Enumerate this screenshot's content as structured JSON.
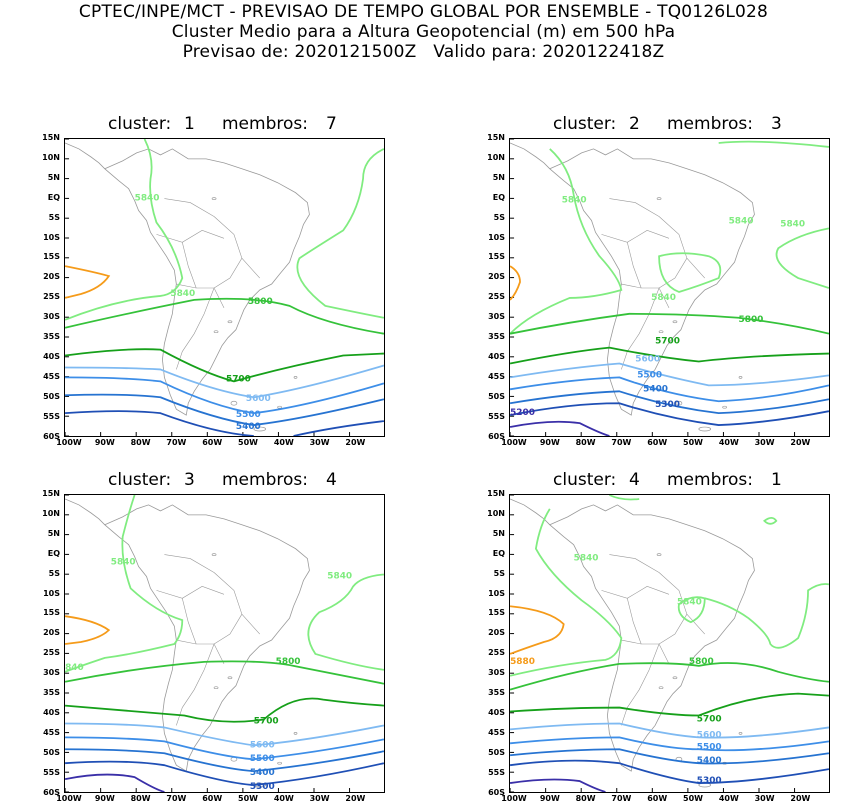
{
  "header": {
    "line1": "CPTEC/INPE/MCT - PREVISAO DE TEMPO GLOBAL POR ENSEMBLE - TQ0126L028",
    "line2": "Cluster Medio para a Altura Geopotencial (m) em 500 hPa",
    "line3": "Previsao de: 2020121500Z   Valido para: 2020122418Z"
  },
  "axes": {
    "lat_labels": [
      "15N",
      "10N",
      "5N",
      "EQ",
      "5S",
      "10S",
      "15S",
      "20S",
      "25S",
      "30S",
      "35S",
      "40S",
      "45S",
      "50S",
      "55S",
      "60S"
    ],
    "lon_labels": [
      "100W",
      "90W",
      "80W",
      "70W",
      "60W",
      "50W",
      "40W",
      "30W",
      "20W"
    ]
  },
  "colors": {
    "c5200": "#3a2fa8",
    "c5300": "#1f4fb5",
    "c5400": "#2673d1",
    "c5500": "#3d8ee8",
    "c5600": "#7fbaf2",
    "c5700": "#16a01a",
    "c5800": "#35c23a",
    "c5840": "#80ec80",
    "c5880": "#f59b1a",
    "coast": "#9a9a9a"
  },
  "panels": [
    {
      "cluster_label": "cluster:",
      "cluster_value": "1",
      "members_label": "membros:",
      "members_value": "7",
      "labels": [
        {
          "text": "5840",
          "color": "c5840"
        },
        {
          "text": "5840",
          "color": "c5840"
        },
        {
          "text": "5800",
          "color": "c5800"
        },
        {
          "text": "5700",
          "color": "c5700"
        },
        {
          "text": "5600",
          "color": "c5600"
        },
        {
          "text": "5500",
          "color": "c5500"
        },
        {
          "text": "5400",
          "color": "c5400"
        }
      ]
    },
    {
      "cluster_label": "cluster:",
      "cluster_value": "2",
      "members_label": "membros:",
      "members_value": "3",
      "labels": [
        {
          "text": "5840",
          "color": "c5840"
        },
        {
          "text": "5840",
          "color": "c5840"
        },
        {
          "text": "5840",
          "color": "c5840"
        },
        {
          "text": "5840",
          "color": "c5840"
        },
        {
          "text": "5800",
          "color": "c5800"
        },
        {
          "text": "5700",
          "color": "c5700"
        },
        {
          "text": "5600",
          "color": "c5600"
        },
        {
          "text": "5500",
          "color": "c5500"
        },
        {
          "text": "5400",
          "color": "c5400"
        },
        {
          "text": "5300",
          "color": "c5300"
        },
        {
          "text": "5200",
          "color": "c5200"
        }
      ]
    },
    {
      "cluster_label": "cluster:",
      "cluster_value": "3",
      "members_label": "membros:",
      "members_value": "4",
      "labels": [
        {
          "text": "5840",
          "color": "c5840"
        },
        {
          "text": "5840",
          "color": "c5840"
        },
        {
          "text": "840",
          "color": "c5840"
        },
        {
          "text": "5800",
          "color": "c5800"
        },
        {
          "text": "5700",
          "color": "c5700"
        },
        {
          "text": "5600",
          "color": "c5600"
        },
        {
          "text": "5500",
          "color": "c5500"
        },
        {
          "text": "5400",
          "color": "c5400"
        },
        {
          "text": "5300",
          "color": "c5300"
        }
      ]
    },
    {
      "cluster_label": "cluster:",
      "cluster_value": "4",
      "members_label": "membros:",
      "members_value": "1",
      "labels": [
        {
          "text": "5840",
          "color": "c5840"
        },
        {
          "text": "5840",
          "color": "c5840"
        },
        {
          "text": "5880",
          "color": "c5880"
        },
        {
          "text": "5800",
          "color": "c5800"
        },
        {
          "text": "5700",
          "color": "c5700"
        },
        {
          "text": "5600",
          "color": "c5600"
        },
        {
          "text": "5500",
          "color": "c5500"
        },
        {
          "text": "5400",
          "color": "c5400"
        },
        {
          "text": "5300",
          "color": "c5300"
        }
      ]
    }
  ]
}
